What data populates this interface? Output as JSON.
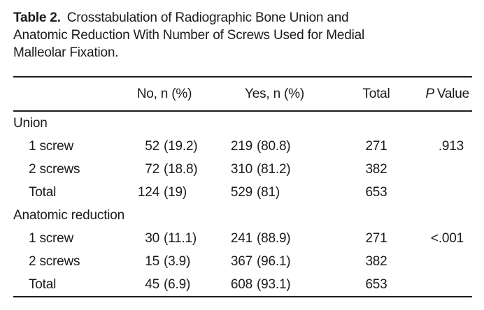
{
  "colors": {
    "background": "#ffffff",
    "text": "#1b1b1b",
    "rule": "#1b1b1b"
  },
  "caption": {
    "label": "Table 2.",
    "lines": [
      "Crosstabulation of Radiographic Bone Union and",
      "Anatomic Reduction With Number of Screws Used for Medial",
      "Malleolar Fixation."
    ]
  },
  "table": {
    "header": {
      "no": "No, n (%)",
      "yes": "Yes, n (%)",
      "total": "Total",
      "p_italic": "P",
      "p_rest": "Value"
    },
    "sections": [
      {
        "title": "Union",
        "rows": [
          {
            "label": "1 screw",
            "no_n": "52",
            "no_pct": "(19.2)",
            "yes_n": "219",
            "yes_pct": "(80.8)",
            "total": "271",
            "p": ".913"
          },
          {
            "label": "2 screws",
            "no_n": "72",
            "no_pct": "(18.8)",
            "yes_n": "310",
            "yes_pct": "(81.2)",
            "total": "382",
            "p": ""
          },
          {
            "label": "Total",
            "no_n": "124",
            "no_pct": "(19)",
            "yes_n": "529",
            "yes_pct": "(81)",
            "total": "653",
            "p": ""
          }
        ]
      },
      {
        "title": "Anatomic reduction",
        "rows": [
          {
            "label": "1 screw",
            "no_n": "30",
            "no_pct": "(11.1)",
            "yes_n": "241",
            "yes_pct": "(88.9)",
            "total": "271",
            "p": "<.001"
          },
          {
            "label": "2 screws",
            "no_n": "15",
            "no_pct": "(3.9)",
            "yes_n": "367",
            "yes_pct": "(96.1)",
            "total": "382",
            "p": ""
          },
          {
            "label": "Total",
            "no_n": "45",
            "no_pct": "(6.9)",
            "yes_n": "608",
            "yes_pct": "(93.1)",
            "total": "653",
            "p": ""
          }
        ]
      }
    ]
  }
}
